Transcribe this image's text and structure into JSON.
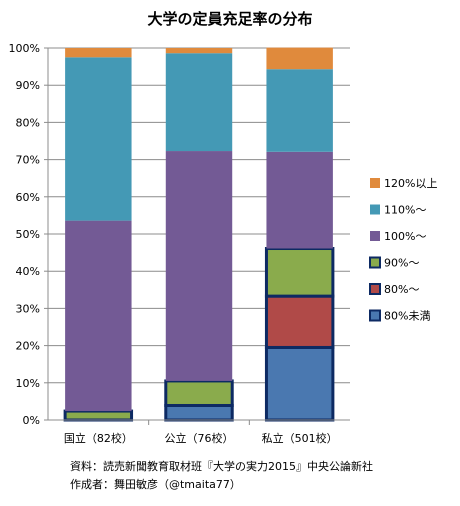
{
  "chart_data": {
    "type": "bar",
    "stacked": true,
    "title": "大学の定員充足率の分布",
    "categories": [
      "国立（82校）",
      "公立（76校）",
      "私立（501校）"
    ],
    "ylim": [
      0,
      100
    ],
    "yticks": [
      "0%",
      "10%",
      "20%",
      "30%",
      "40%",
      "50%",
      "60%",
      "70%",
      "80%",
      "90%",
      "100%"
    ],
    "legend_position": "right",
    "series": [
      {
        "name": "80%未満",
        "color": "#4a78b0",
        "highlight": true,
        "values": [
          0,
          3.9,
          19.5
        ]
      },
      {
        "name": "80%〜",
        "color": "#b04a48",
        "highlight": true,
        "values": [
          0,
          0,
          13.8
        ]
      },
      {
        "name": "90%〜",
        "color": "#8aab4c",
        "highlight": true,
        "values": [
          2.4,
          6.6,
          12.8
        ]
      },
      {
        "name": "100%〜",
        "color": "#735a95",
        "highlight": false,
        "values": [
          51.2,
          61.8,
          26.0
        ]
      },
      {
        "name": "110%〜",
        "color": "#4499b5",
        "highlight": false,
        "values": [
          43.9,
          26.3,
          22.2
        ]
      },
      {
        "name": "120%以上",
        "color": "#e08a3c",
        "highlight": false,
        "values": [
          2.5,
          1.4,
          5.8
        ]
      }
    ]
  },
  "footer": {
    "source": "資料：読売新聞教育取材班『大学の実力2015』中央公論新社",
    "author": "作成者：舞田敏彦（@tmaita77）"
  }
}
